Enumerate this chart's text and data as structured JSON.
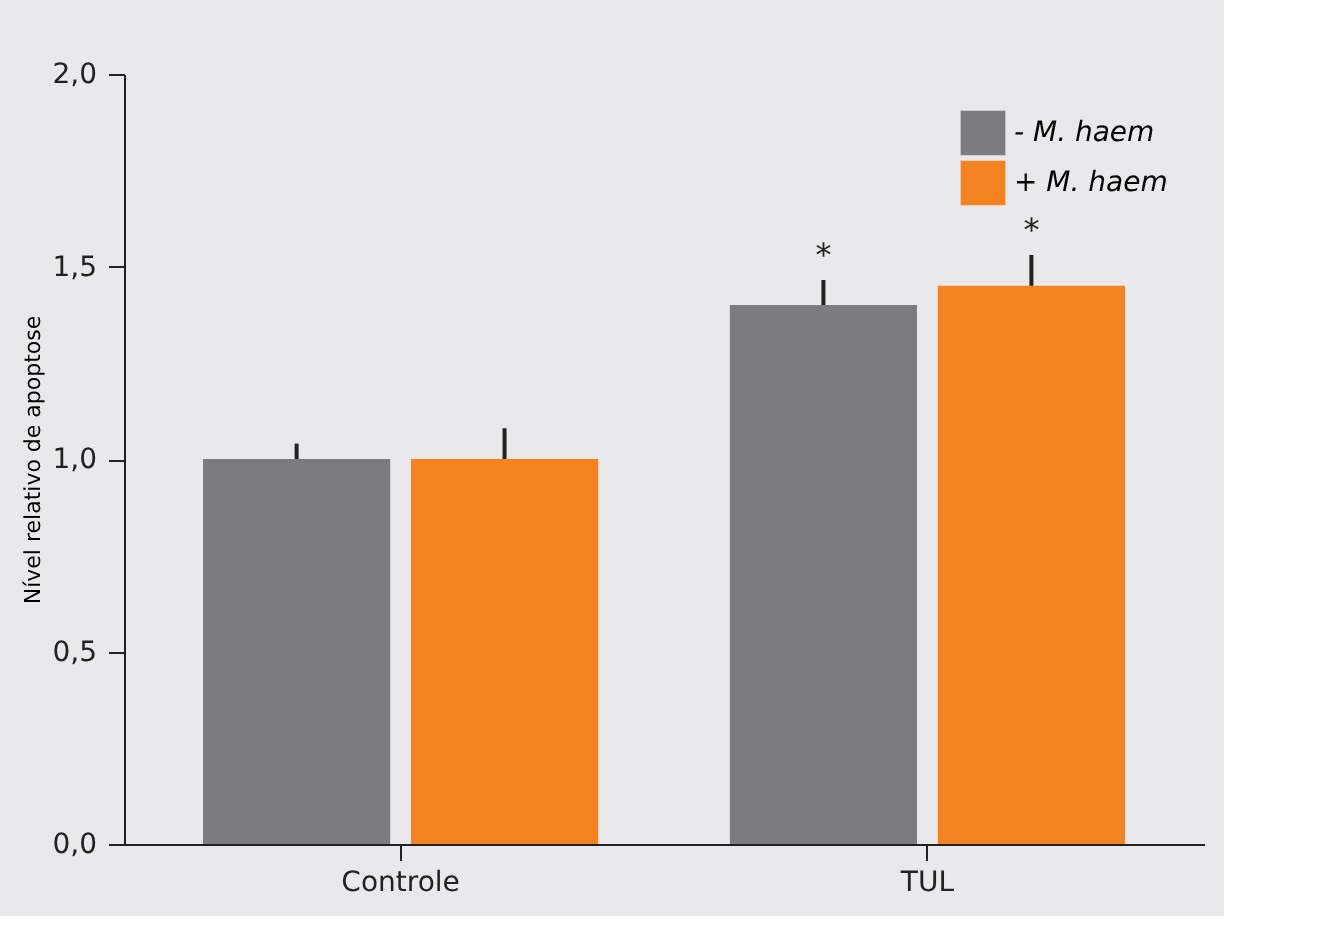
{
  "chart_data": {
    "type": "bar",
    "ylabel": "Nível relativo de apoptose",
    "categories": [
      "Controle",
      "TUL"
    ],
    "series": [
      {
        "name": "- M. haem",
        "color": "#7c7c7e",
        "values": [
          1.0,
          1.4
        ],
        "errors": [
          [
            1.0,
            1.04
          ],
          [
            1.4,
            1.465
          ]
        ]
      },
      {
        "name": "+ M. haem",
        "color": "#f58220",
        "values": [
          1.0,
          1.45
        ],
        "errors": [
          [
            1.0,
            1.08
          ],
          [
            1.45,
            1.53
          ]
        ]
      }
    ],
    "ylim": [
      0,
      2.0
    ],
    "yticks": [
      {
        "value": 0,
        "label": "0,0"
      },
      {
        "value": 0.5,
        "label": "0,5"
      },
      {
        "value": 1.0,
        "label": "1,0"
      },
      {
        "value": 1.5,
        "label": "1,5"
      },
      {
        "value": 2.0,
        "label": "2,0"
      }
    ],
    "annotations": [
      "*",
      "*"
    ],
    "grid": false,
    "legend": "top right"
  }
}
